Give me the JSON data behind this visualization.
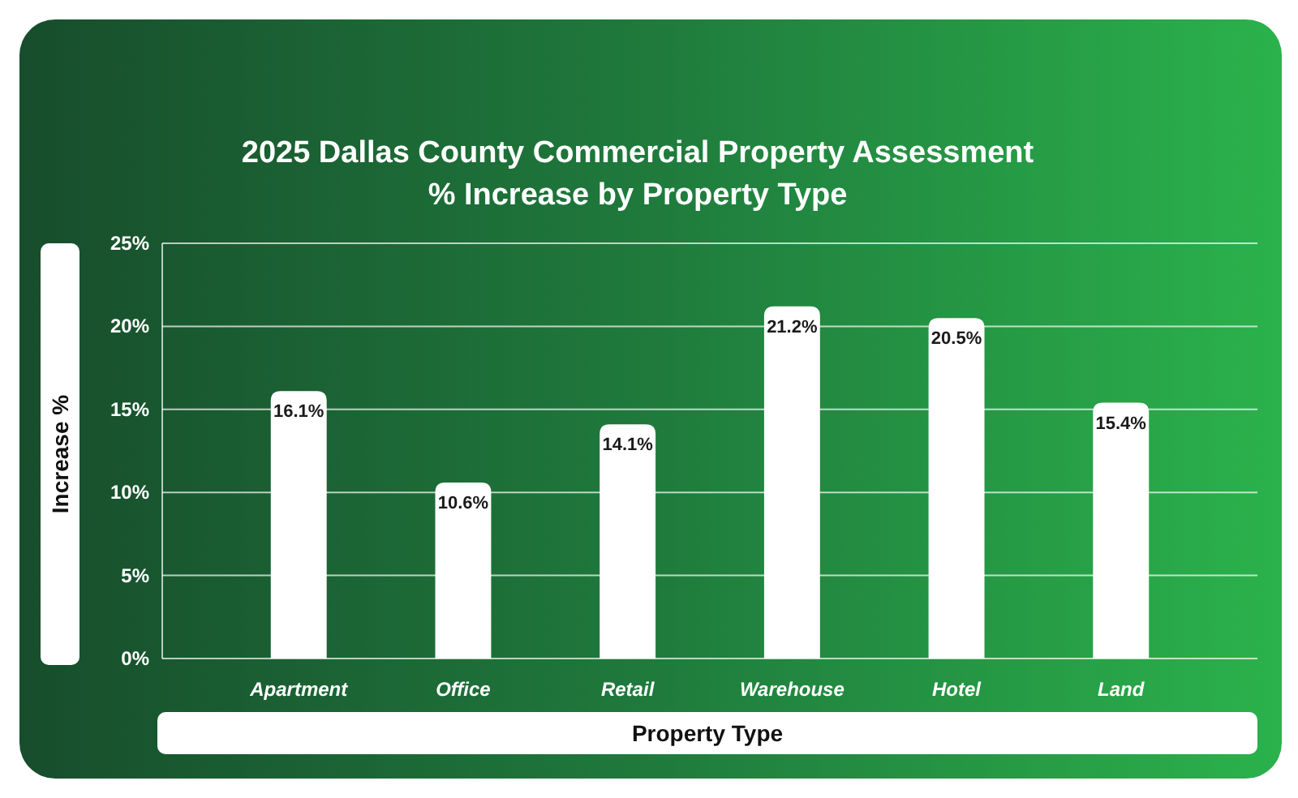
{
  "chart_data": {
    "type": "bar",
    "title": "2025 Dallas County Commercial Property Assessment % Increase by Property Type",
    "xlabel": "Property Type",
    "ylabel": "Increase %",
    "categories": [
      "Apartment",
      "Office",
      "Retail",
      "Warehouse",
      "Hotel",
      "Land"
    ],
    "values": [
      16.1,
      10.6,
      14.1,
      21.2,
      20.5,
      15.4
    ],
    "color": "#ffffff",
    "value_labels": [
      "16.1%",
      "10.6%",
      "14.1%",
      "21.2%",
      "20.5%",
      "15.4%"
    ],
    "ylim": [
      0,
      25
    ],
    "yticks": [
      {
        "value": 0,
        "label": "0%"
      },
      {
        "value": 5,
        "label": "5%"
      },
      {
        "value": 10,
        "label": "10%"
      },
      {
        "value": 15,
        "label": "15%"
      },
      {
        "value": 20,
        "label": "20%"
      },
      {
        "value": 25,
        "label": "25%"
      }
    ],
    "grid": "y"
  }
}
